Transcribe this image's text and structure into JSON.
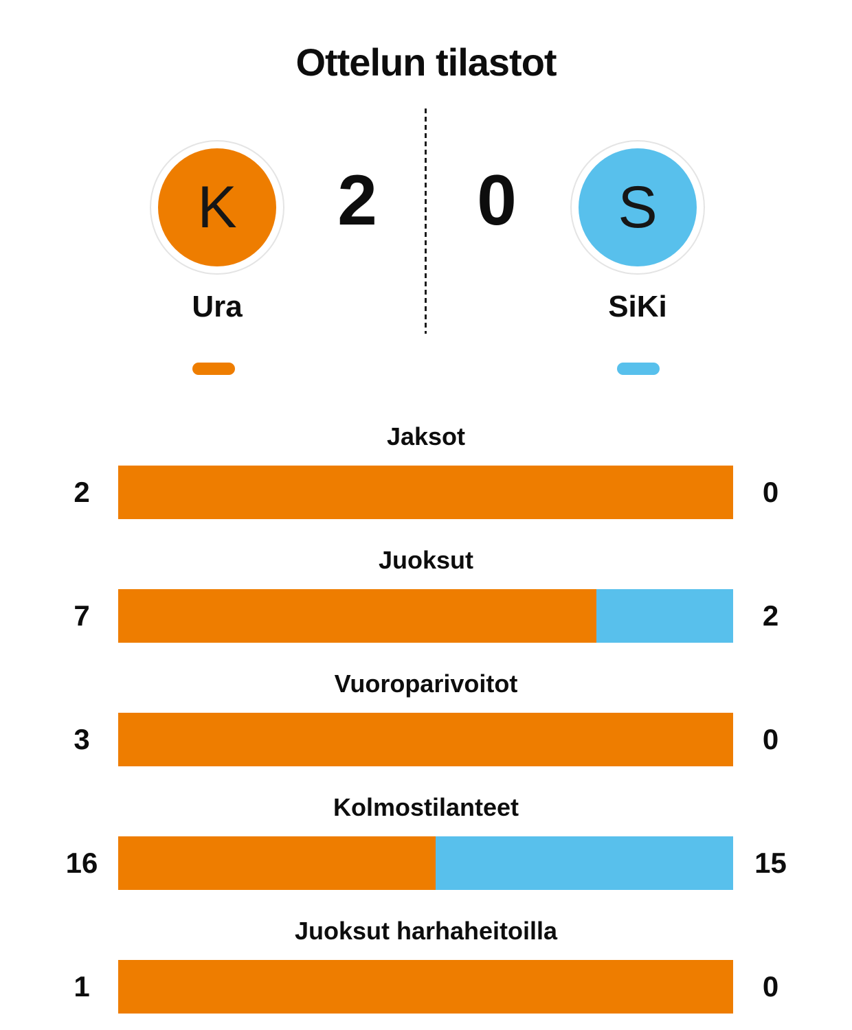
{
  "title": "Ottelun tilastot",
  "colors": {
    "home": "#ee7d00",
    "away": "#58c0ec",
    "text": "#0d0d0d",
    "ring_border": "#e4e4e4"
  },
  "scoreboard": {
    "home": {
      "name": "Ura",
      "initial": "K",
      "score": "2"
    },
    "away": {
      "name": "SiKi",
      "initial": "S",
      "score": "0"
    }
  },
  "chart_data": {
    "type": "bar",
    "title": "Ottelun tilastot",
    "orientation": "horizontal-stacked-share",
    "categories": [
      "Jaksot",
      "Juoksut",
      "Vuoroparivoitot",
      "Kolmostilanteet",
      "Juoksut harhaheitoilla"
    ],
    "series": [
      {
        "name": "Ura",
        "color": "#ee7d00",
        "values": [
          2,
          7,
          3,
          16,
          1
        ]
      },
      {
        "name": "SiKi",
        "color": "#58c0ec",
        "values": [
          0,
          2,
          0,
          15,
          0
        ]
      }
    ],
    "value_labels": "both-ends",
    "legend_position": "top-as-pills",
    "grid": false
  }
}
